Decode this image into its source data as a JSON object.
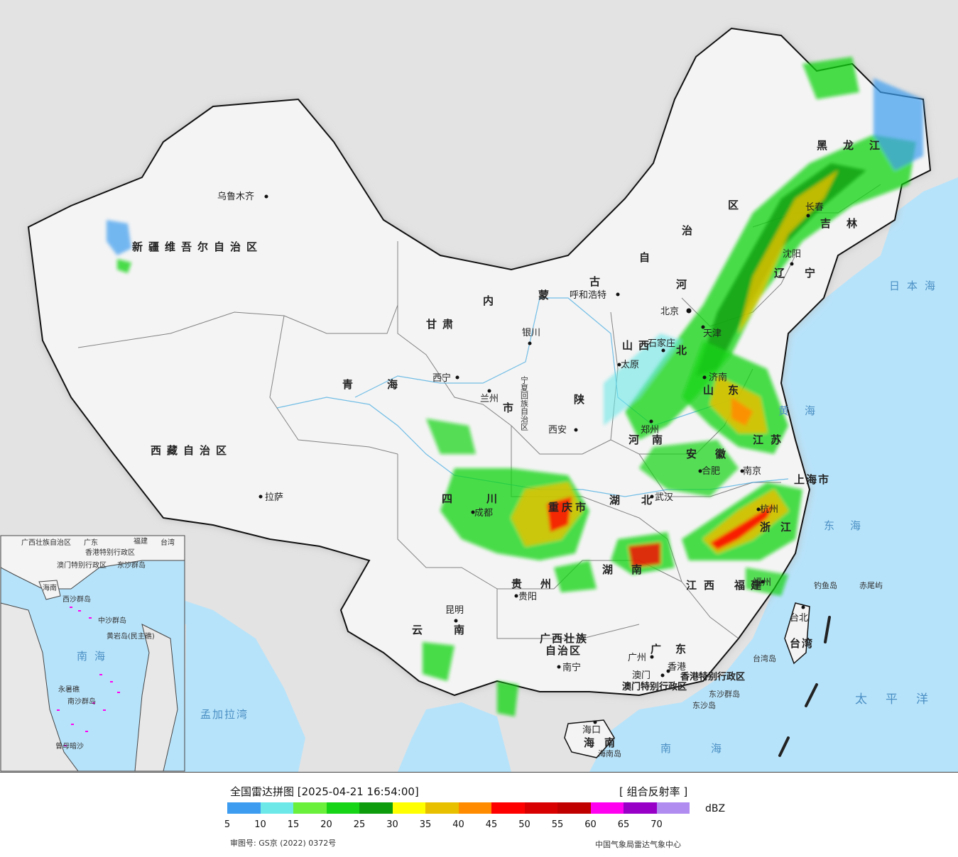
{
  "legend": {
    "title": "全国雷达拼图 [2025-04-21 16:54:00]",
    "product": "[ 组合反射率 ]",
    "unit": "dBZ",
    "ticks": [
      "5",
      "10",
      "15",
      "20",
      "25",
      "30",
      "35",
      "40",
      "45",
      "50",
      "55",
      "60",
      "65",
      "70"
    ],
    "colors": [
      "#3d9cf0",
      "#6de8e8",
      "#6af03a",
      "#16d416",
      "#0c9c0c",
      "#ffff00",
      "#e8c000",
      "#ff8c00",
      "#ff0000",
      "#d80000",
      "#c00000",
      "#ff00f0",
      "#9800c8",
      "#b08cf0"
    ]
  },
  "credits": {
    "left": "审图号: GS京 (2022) 0372号",
    "right": "中国气象局雷达气象中心"
  },
  "map": {
    "provinces": {
      "xinjiang": "新疆维吾尔自治区",
      "xizang": "西藏自治区",
      "qinghai": "青海",
      "gansu": "甘肃",
      "neimenggu_1": "内",
      "neimenggu_2": "蒙",
      "neimenggu_3": "古",
      "neimenggu_4": "自",
      "neimenggu_5": "治",
      "neimenggu_6": "区",
      "heilongjiang": "黑龙江",
      "jilin": "吉林",
      "liaoning": "辽宁",
      "hebei_1": "河",
      "hebei_2": "北",
      "shanxi": "山西",
      "shaanxi": "陕",
      "ningxia": "宁夏回族自治区",
      "henan": "河南",
      "shandong": "山东",
      "jiangsu": "江苏",
      "anhui": "安徽",
      "hubei": "湖北",
      "hunan": "湖南",
      "jiangxi": "江西",
      "zhejiang": "浙江",
      "fujian": "福建",
      "sichuan": "四川",
      "chongqing": "重庆市",
      "guizhou": "贵州",
      "yunnan": "云南",
      "guangxi_1": "广西壮族",
      "guangxi_2": "自治区",
      "guangdong": "广东",
      "hainan": "海南",
      "taiwan": "台湾",
      "shanghai": "上海市",
      "gansu_shi": "市",
      "hk": "香港特别行政区",
      "macau": "澳门特别行政区"
    },
    "cities": {
      "urumqi": "乌鲁木齐",
      "lhasa": "拉萨",
      "xining": "西宁",
      "lanzhou": "兰州",
      "yinchuan": "银川",
      "hohhot": "呼和浩特",
      "beijing": "北京",
      "tianjin": "天津",
      "shijiazhuang": "石家庄",
      "taiyuan": "太原",
      "jinan": "济南",
      "xian": "西安",
      "zhengzhou": "郑州",
      "hefei": "合肥",
      "nanjing": "南京",
      "wuhan": "武汉",
      "chengdu": "成都",
      "guiyang": "贵阳",
      "kunming": "昆明",
      "nanning": "南宁",
      "guangzhou": "广州",
      "macao": "澳门",
      "hongkong": "香港",
      "haikou": "海口",
      "fuzhou": "福州",
      "taibei": "台北",
      "shenyang": "沈阳",
      "changchun": "长春",
      "hangzhou": "杭州"
    },
    "seas": {
      "japan": "日本海",
      "yellow": "黄海",
      "east": "东海",
      "pacific": "太平洋",
      "south": "南海",
      "bengal": "孟加拉湾"
    },
    "islands": {
      "diaoyu": "钓鱼岛",
      "chiwei": "赤尾屿",
      "dongsha": "东沙群岛",
      "dongsha_dao": "东沙岛",
      "taiwan_dao": "台湾岛",
      "hainan_dao": "海南岛"
    },
    "inset": {
      "guangxi": "广西壮族自治区",
      "guangdong": "广东",
      "fujian": "福建",
      "taiwan": "台湾",
      "hk": "香港特别行政区",
      "macau": "澳门特别行政区",
      "dongsha": "东沙群岛",
      "hainan": "海南",
      "xisha": "西沙群岛",
      "zhongsha": "中沙群岛",
      "huangyan": "黄岩岛(民主礁)",
      "nanhai": "南海",
      "yongshu": "永暑礁",
      "nansha": "南沙群岛",
      "zengmu": "曾母暗沙"
    }
  }
}
